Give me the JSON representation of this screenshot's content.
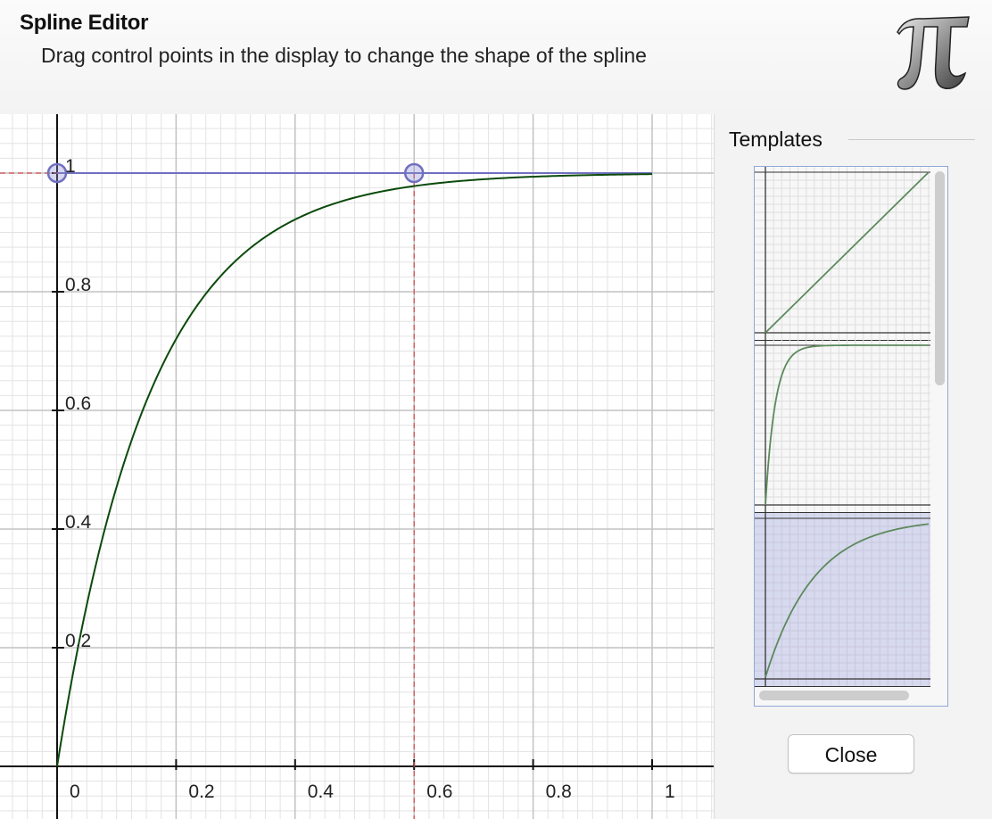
{
  "header": {
    "title": "Spline Editor",
    "subtitle": "Drag control points in the display to change the shape of the spline",
    "logo_icon": "pi-icon"
  },
  "editor": {
    "x_ticks": [
      "0",
      "0.2",
      "0.4",
      "0.6",
      "0.8",
      "1"
    ],
    "y_ticks": [
      "0.2",
      "0.4",
      "0.6",
      "0.8",
      "1"
    ],
    "control_points": [
      {
        "x": 0,
        "y": 1
      },
      {
        "x": 0.6,
        "y": 1
      }
    ],
    "curve_color": "#0b4a0b",
    "control_point_color": "#7070c0",
    "guide_color": "#d24a4a"
  },
  "templates": {
    "label": "Templates",
    "items": [
      {
        "name": "linear",
        "selected": false
      },
      {
        "name": "fast-ease-out",
        "selected": false
      },
      {
        "name": "ease-out",
        "selected": true
      }
    ]
  },
  "buttons": {
    "close_label": "Close"
  }
}
